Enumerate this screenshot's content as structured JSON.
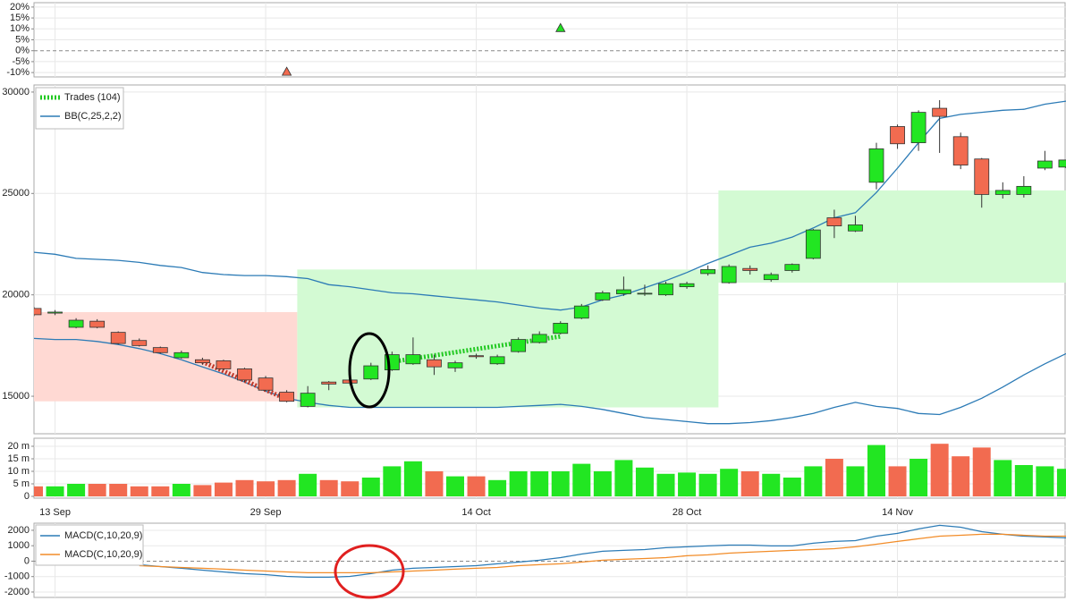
{
  "chart_data": [
    {
      "type": "marker",
      "ylim": [
        -12,
        22
      ],
      "yticks": [
        {
          "value": 20,
          "label": "20%"
        },
        {
          "value": 15,
          "label": "15%"
        },
        {
          "value": 10,
          "label": "10%"
        },
        {
          "value": 5,
          "label": "5%"
        },
        {
          "value": 0,
          "label": "0%"
        },
        {
          "value": -5,
          "label": "-5%"
        },
        {
          "value": -10,
          "label": "-10%"
        }
      ],
      "markers": [
        {
          "x": 12,
          "value": -9.6,
          "color": "#f26b50"
        },
        {
          "x": 25,
          "value": 10.4,
          "color": "#22e022"
        }
      ]
    },
    {
      "type": "candlestick",
      "categories": [
        null,
        "13 Sep",
        null,
        null,
        null,
        null,
        null,
        null,
        null,
        null,
        null,
        "29 Sep",
        null,
        null,
        null,
        null,
        null,
        null,
        null,
        null,
        null,
        "14 Oct",
        null,
        null,
        null,
        null,
        null,
        null,
        null,
        null,
        null,
        "28 Oct",
        null,
        null,
        null,
        null,
        null,
        null,
        null,
        null,
        null,
        "14 Nov",
        null,
        null,
        null,
        null,
        null,
        null,
        null,
        null
      ],
      "open": [
        19330,
        19100,
        18400,
        18700,
        18150,
        17750,
        17400,
        16900,
        16800,
        16750,
        16350,
        15900,
        15200,
        14500,
        15700,
        15800,
        15850,
        16300,
        16600,
        16800,
        16400,
        17000,
        16600,
        17200,
        17650,
        18100,
        18850,
        19750,
        20050,
        20050,
        20000,
        20400,
        21050,
        20600,
        21300,
        20750,
        21200,
        21800,
        23800,
        23150,
        25550,
        28300,
        27500,
        29200,
        27800,
        26700,
        24950,
        24950,
        26250,
        26300
      ],
      "high": [
        19400,
        19250,
        18850,
        18800,
        18200,
        17850,
        17450,
        17250,
        16900,
        16800,
        16400,
        16000,
        15300,
        15500,
        15750,
        15900,
        16650,
        17200,
        17900,
        17050,
        16750,
        17100,
        17050,
        17900,
        18200,
        18700,
        19550,
        20200,
        20900,
        20500,
        20650,
        20650,
        21450,
        21500,
        21450,
        21100,
        21550,
        23250,
        24200,
        23900,
        27500,
        28400,
        29100,
        29600,
        28000,
        26750,
        25550,
        25850,
        27100,
        26650
      ],
      "low": [
        18950,
        19000,
        18350,
        18350,
        17550,
        17450,
        17100,
        16850,
        16550,
        16300,
        15700,
        15250,
        14700,
        14450,
        15300,
        15550,
        15800,
        16250,
        16550,
        16050,
        16200,
        16850,
        16550,
        17150,
        17600,
        18050,
        18800,
        19700,
        19950,
        19950,
        19950,
        20300,
        20950,
        20550,
        21000,
        20650,
        21100,
        21750,
        22800,
        23100,
        25200,
        27200,
        27100,
        27000,
        26200,
        24300,
        24750,
        24800,
        26150,
        26250
      ],
      "close": [
        19020,
        19150,
        18750,
        18400,
        17600,
        17500,
        17150,
        17150,
        16650,
        16350,
        15800,
        15300,
        14750,
        15150,
        15600,
        15650,
        16500,
        17050,
        17050,
        16450,
        16650,
        16950,
        16950,
        17800,
        18050,
        18600,
        19450,
        20100,
        20250,
        20080,
        20550,
        20550,
        21250,
        21400,
        21200,
        21000,
        21500,
        23200,
        23400,
        23450,
        27200,
        27450,
        29000,
        28800,
        26400,
        24950,
        25150,
        25350,
        26600,
        26650
      ],
      "up_color": "#22e622",
      "down_color": "#f26b50",
      "ylim": [
        13150,
        30350
      ],
      "yticks": [
        15000,
        20000,
        25000,
        30000
      ],
      "bands": {
        "name": "BB(C,25,2,2)",
        "color": "#2c7bb6",
        "upper": [
          22100,
          22000,
          21800,
          21750,
          21700,
          21600,
          21450,
          21350,
          21100,
          21000,
          20950,
          20950,
          20900,
          20800,
          20500,
          20400,
          20250,
          20100,
          20050,
          19950,
          19850,
          19750,
          19650,
          19500,
          19350,
          19250,
          19400,
          19750,
          20000,
          20350,
          20700,
          21100,
          21550,
          21950,
          22350,
          22550,
          22850,
          23300,
          23800,
          24050,
          25050,
          26250,
          27500,
          28700,
          28900,
          29000,
          29100,
          29150,
          29400,
          29550
        ],
        "lower": [
          17850,
          17800,
          17800,
          17700,
          17550,
          17350,
          17100,
          16800,
          16450,
          16100,
          15700,
          15250,
          14900,
          14700,
          14550,
          14450,
          14450,
          14450,
          14450,
          14450,
          14450,
          14450,
          14450,
          14500,
          14550,
          14600,
          14500,
          14350,
          14150,
          13950,
          13850,
          13750,
          13650,
          13650,
          13700,
          13800,
          13950,
          14150,
          14450,
          14700,
          14500,
          14400,
          14150,
          14100,
          14450,
          14900,
          15450,
          16050,
          16600,
          17100
        ]
      },
      "zones": [
        {
          "start": 0,
          "end": 12,
          "high": 19150,
          "low": 14750,
          "color": "#ffd9d3"
        },
        {
          "start": 13,
          "end": 32,
          "high": 21250,
          "low": 14450,
          "color": "#d3fad3"
        },
        {
          "start": 33,
          "end": 49,
          "high": 25150,
          "low": 20600,
          "color": "#d3fad3"
        }
      ],
      "trades": {
        "name": "Trades (104)",
        "color": "#22c922",
        "segments": [
          {
            "x0": 8,
            "y0": 16700,
            "x1": 12,
            "y1": 14850,
            "color": "#c0392b"
          },
          {
            "x0": 17,
            "y0": 16700,
            "x1": 25,
            "y1": 17950,
            "color": "#22c922"
          }
        ]
      }
    },
    {
      "type": "bar",
      "values": [
        4,
        4,
        5,
        5,
        5,
        4,
        4,
        5,
        4.5,
        5.5,
        6.5,
        6,
        6.5,
        9,
        6.5,
        6,
        7.5,
        12,
        14,
        10,
        8,
        8,
        6.5,
        10,
        10,
        10,
        13,
        10,
        14.5,
        11.5,
        9,
        9.5,
        9,
        11,
        10,
        9,
        7.5,
        12,
        15,
        12,
        20.5,
        12,
        15,
        21,
        16,
        19.5,
        14.5,
        12.5,
        12,
        11
      ],
      "ylim": [
        0,
        22.5
      ],
      "yticks": [
        0,
        {
          "value": 5,
          "label": "5 m"
        },
        {
          "value": 10,
          "label": "10 m"
        },
        {
          "value": 15,
          "label": "15 m"
        },
        {
          "value": 20,
          "label": "20 m"
        }
      ]
    },
    {
      "type": "line",
      "ylim": [
        -2350,
        2460
      ],
      "yticks": [
        -2000,
        -1000,
        0,
        1000,
        2000
      ],
      "series": [
        {
          "name": "MACD(C,10,20,9)",
          "color": "#2c7bb6",
          "values": [
            null,
            null,
            null,
            null,
            null,
            -230,
            -350,
            -460,
            -580,
            -700,
            -810,
            -870,
            -990,
            -1040,
            -1040,
            -990,
            -810,
            -580,
            -460,
            -410,
            -350,
            -290,
            -170,
            -60,
            60,
            230,
            460,
            640,
            700,
            750,
            870,
            930,
            990,
            1040,
            1040,
            990,
            990,
            1160,
            1280,
            1330,
            1620,
            1800,
            2090,
            2320,
            2200,
            1910,
            1740,
            1620,
            1570,
            1510
          ]
        },
        {
          "name": "MACD(C,10,20,9)",
          "color": "#f28c28",
          "values": [
            null,
            null,
            null,
            null,
            null,
            -290,
            -350,
            -410,
            -460,
            -520,
            -580,
            -640,
            -700,
            -750,
            -750,
            -750,
            -750,
            -700,
            -640,
            -580,
            -520,
            -460,
            -410,
            -290,
            -230,
            -170,
            -60,
            60,
            120,
            170,
            230,
            350,
            410,
            520,
            580,
            640,
            700,
            750,
            810,
            930,
            1100,
            1280,
            1450,
            1620,
            1680,
            1740,
            1740,
            1680,
            1620,
            1620
          ]
        }
      ]
    }
  ]
}
